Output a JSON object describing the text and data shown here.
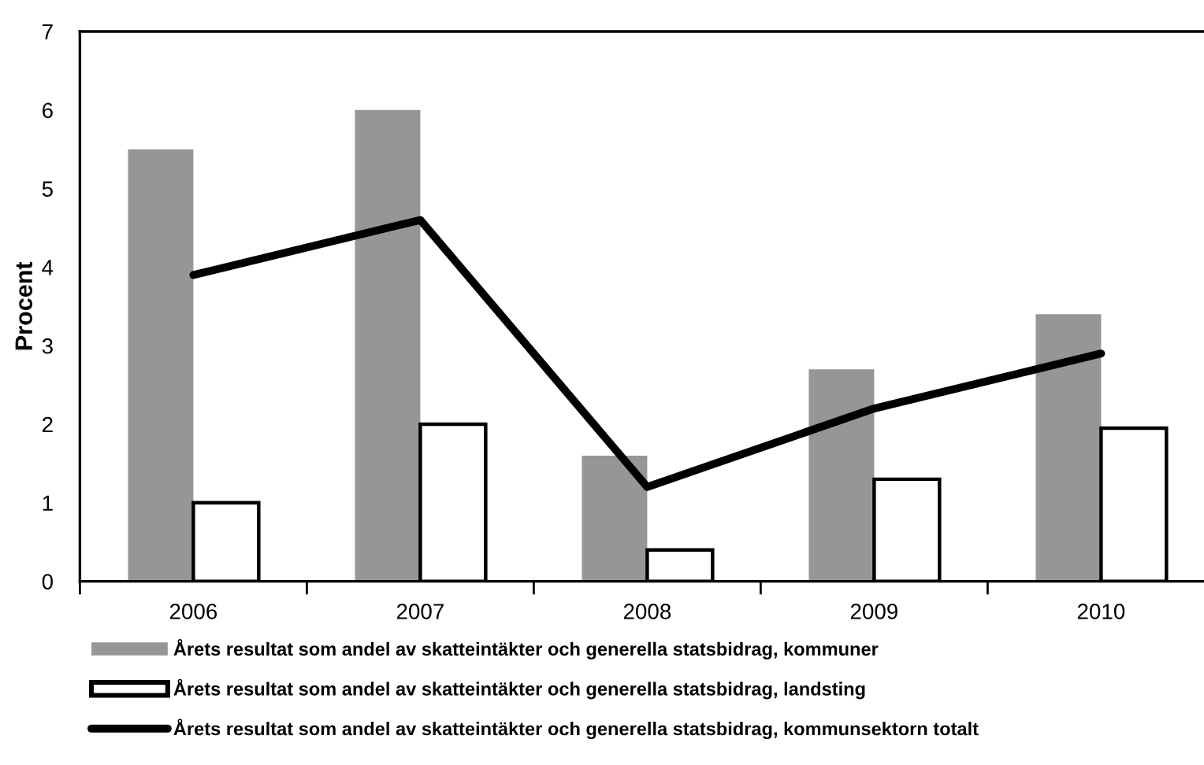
{
  "chart_data": {
    "type": "bar",
    "ylabel": "Procent",
    "categories": [
      "2006",
      "2007",
      "2008",
      "2009",
      "2010"
    ],
    "series": [
      {
        "name": "Årets resultat som andel av skatteintäkter och generella statsbidrag, kommuner",
        "color": "#969696",
        "values": [
          5.5,
          6.0,
          1.6,
          2.7,
          3.4
        ]
      },
      {
        "name": "Årets resultat som andel av skatteintäkter och generella statsbidrag, landsting",
        "color": "#ffffff",
        "values": [
          1.0,
          2.0,
          0.4,
          1.3,
          1.95
        ]
      },
      {
        "name": "Årets resultat som andel av skatteintäkter och generella statsbidrag, kommunsektorn totalt",
        "type": "line",
        "color": "#000000",
        "values": [
          3.9,
          4.6,
          1.2,
          2.2,
          2.9
        ]
      }
    ],
    "ylim": [
      0,
      7
    ],
    "yticks": [
      0,
      1,
      2,
      3,
      4,
      5,
      6,
      7
    ],
    "grid": false,
    "legend": "bottom",
    "line_style": "solid"
  }
}
